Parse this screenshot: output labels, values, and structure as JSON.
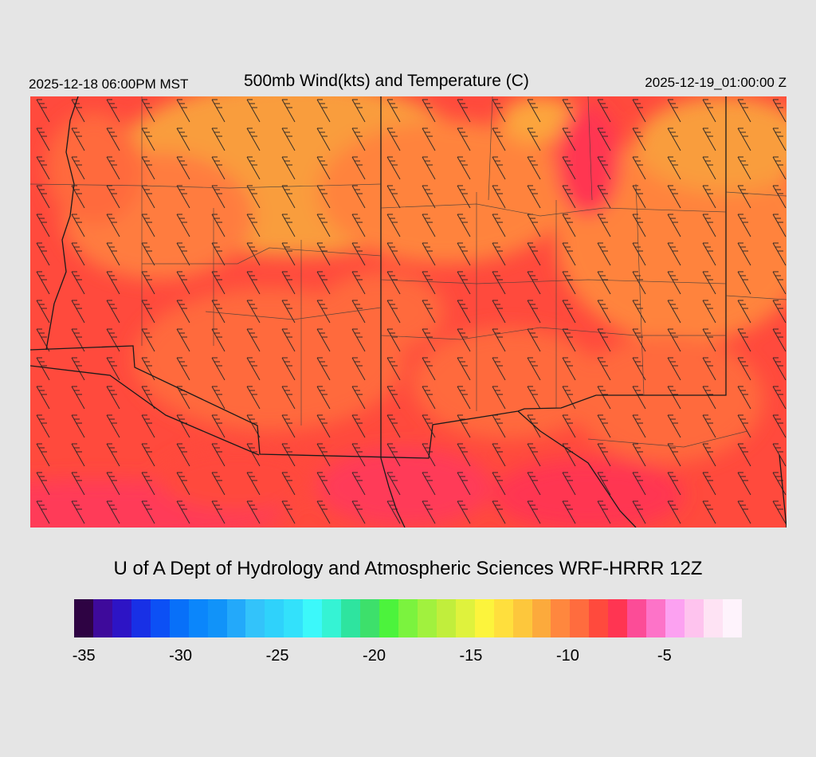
{
  "header": {
    "valid_time": "2025-12-18 06:00PM MST",
    "title": "500mb Wind(kts) and Temperature (C)",
    "init_time": "2025-12-19_01:00:00 Z"
  },
  "map": {
    "field": "temperature",
    "units": "C",
    "wind_barbs": true,
    "typical_wind_direction_deg_from": 300,
    "temperature_range_shown": [
      -10,
      -6
    ],
    "colors": {
      "warm_orange": "#f9a23c",
      "orange": "#ff7f3f",
      "red": "#ff4a3d",
      "pink_red": "#ff3a5a",
      "boundary": "#1a1a1a"
    }
  },
  "credit": "U of A Dept of Hydrology and Atmospheric Sciences WRF-HRRR 12Z",
  "colorbar": {
    "min": -35.5,
    "max": -1,
    "colors": [
      "#2e0343",
      "#3e0a9b",
      "#2d14c5",
      "#1830e6",
      "#0c50f5",
      "#0870f9",
      "#0b86fb",
      "#1193f9",
      "#23a9fa",
      "#33c3fa",
      "#2fd2fb",
      "#33e1fb",
      "#3cf8fa",
      "#35f3d4",
      "#2ee49f",
      "#3de06b",
      "#4cf33c",
      "#7bf33e",
      "#a1f13e",
      "#c1ee3c",
      "#dff23d",
      "#fcf43c",
      "#ffdf3d",
      "#fdc73c",
      "#fcaa3c",
      "#ff873e",
      "#ff6c3e",
      "#ff4a3d",
      "#ff3552",
      "#fc4c97",
      "#fd73c8",
      "#fca1f1",
      "#fec3ee",
      "#fee3f4",
      "#fef3fc"
    ],
    "ticks": [
      "-35",
      "-30",
      "-25",
      "-20",
      "-15",
      "-10",
      "-5"
    ],
    "tick_values": [
      -35,
      -30,
      -25,
      -20,
      -15,
      -10,
      -5
    ]
  }
}
